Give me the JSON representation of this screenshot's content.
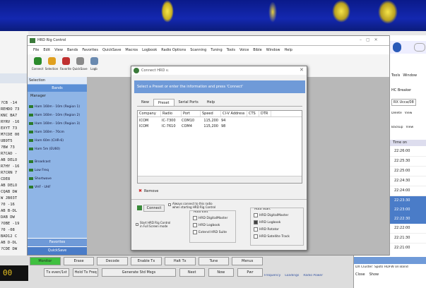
{
  "log_window": {
    "lines": [
      "?CB -14",
      "REHDO 73",
      "KNC BA7",
      "RYRV -16",
      "EXYT 73",
      "M7CDE 00",
      "UB9T5",
      "?BW 73",
      "R7CAD -",
      "AB DELO",
      "R7HY -16",
      "R7CRN 7",
      "CDE8",
      "AB DELO",
      "CQAB DW",
      "W JB03T",
      "?0 -16",
      "AB B-DL",
      "DAB DW",
      "?OBE -19",
      "?0 -08",
      "BAD12 C",
      "AB D-DL",
      "?CDE DW"
    ]
  },
  "main_window": {
    "title": "HRD Rig Control",
    "menu": [
      "File",
      "Edit",
      "View",
      "Bands",
      "Favorites",
      "QuickSave",
      "Macros",
      "Logbook",
      "Radio Options",
      "Scanning",
      "Tuning",
      "Tools",
      "Voice",
      "Bible",
      "Window",
      "Help"
    ],
    "toolbar": [
      "Connect",
      "Selection",
      "Favorite",
      "QuickSave",
      "Logb"
    ],
    "sidebar": {
      "header": "Selection",
      "section": "Bands",
      "manager": "Manager",
      "items": [
        "Ham 160m - 10m (Region 1)",
        "Ham 160m - 10m (Region 2)",
        "Ham 160m - 10m (Region 3)",
        "Ham 160m - 70cm",
        "Ham 60m (CHR-6)",
        "Ham 5m (EU60)",
        "Broadcast",
        "Low Freq",
        "Shortwave",
        "VHF - UHF"
      ],
      "buttons": [
        "Favorites",
        "QuickSave"
      ]
    }
  },
  "dialog": {
    "title": "Connect HRD v.",
    "banner": "Select a Preset or enter the information and press 'Connect'",
    "tabs": [
      "New",
      "Preset",
      "Serial Ports",
      "Help"
    ],
    "columns": [
      "Company",
      "Radio",
      "Port",
      "Speed",
      "CI-V Address",
      "CTS",
      "DTR"
    ],
    "rows": [
      [
        "ICOM",
        "IC-7300",
        "COM10",
        "115,200",
        "94",
        "",
        ""
      ],
      [
        "ICOM",
        "IC-7610",
        "COM4",
        "115,200",
        "98",
        "",
        ""
      ]
    ],
    "remove": "Remove",
    "connect": "Connect",
    "always_connect": "Always connect to this radio when starting HRD Rig Control",
    "full_screen": "Start HRD Rig Control in Full Screen mode",
    "auto_start_left": {
      "title": "Auto Exit",
      "options": [
        "HRD DigitalMaster",
        "HRD Logbook",
        "Extend HRD Suite"
      ]
    },
    "auto_start_right": {
      "title": "Auto Start",
      "options": [
        "HRD DigitalMaster",
        "HRD Logbook",
        "HRD Rotator",
        "HRD Satellite Track"
      ]
    }
  },
  "right_window": {
    "menu": [
      "Tools",
      "Window"
    ],
    "label": "HC Breaker",
    "tab": "RX Ucca/08",
    "buttons": [
      "Delete",
      "View"
    ],
    "buttons2": [
      "Backup",
      "View"
    ],
    "header": "Time on",
    "times": [
      "22:26:00",
      "22:25:30",
      "22:25:00",
      "22:24:30",
      "22:24:00",
      "22:23:30",
      "22:23:00",
      "22:22:30",
      "22:22:00",
      "22:21:30",
      "22:21:00"
    ]
  },
  "bottom_bar": {
    "row1": [
      "Monitor",
      "Erase",
      "Decode",
      "Enable Tx",
      "Halt Tx",
      "Tune",
      "Menus"
    ],
    "freq": "00",
    "row2": [
      "Tx even/1st",
      "Hold Tx Freq",
      "Generate Std Msgs",
      "Next",
      "Now",
      "Pwr"
    ],
    "status": [
      "Frequency",
      "Loadings",
      "Radio Power"
    ],
    "cluster": "DX Cluster: Spots HDFW on Band",
    "cluster2": "Close",
    "cluster3": "Show"
  }
}
